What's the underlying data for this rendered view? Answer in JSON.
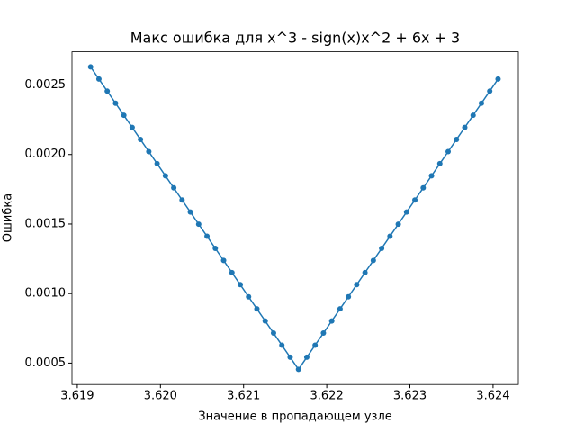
{
  "chart_data": {
    "type": "line",
    "title": "Макс ошибка для x^3 - sign(x)x^2 + 6x + 3",
    "x_label": "Значение в пропадающем узле",
    "y_label": "Ошибка",
    "color": "#1f77b4",
    "x": [
      3.61916,
      3.61926,
      3.61936,
      3.61946,
      3.61956,
      3.61966,
      3.61976,
      3.61986,
      3.61996,
      3.62006,
      3.62016,
      3.62026,
      3.62036,
      3.62046,
      3.62056,
      3.62066,
      3.62076,
      3.62086,
      3.62096,
      3.62106,
      3.62116,
      3.62126,
      3.62136,
      3.62146,
      3.62156,
      3.62166,
      3.62176,
      3.62186,
      3.62196,
      3.62206,
      3.62216,
      3.62226,
      3.62236,
      3.62246,
      3.62256,
      3.62266,
      3.62276,
      3.62286,
      3.62296,
      3.62306,
      3.62316,
      3.62326,
      3.62336,
      3.62346,
      3.62356,
      3.62366,
      3.62376,
      3.62386,
      3.62396,
      3.62406
    ],
    "values": [
      0.00263,
      0.002543,
      0.002456,
      0.002369,
      0.002282,
      0.002195,
      0.002108,
      0.002021,
      0.001934,
      0.001847,
      0.00176,
      0.001673,
      0.001586,
      0.001499,
      0.001412,
      0.001325,
      0.001238,
      0.001151,
      0.001064,
      0.000977,
      0.00089,
      0.000803,
      0.000716,
      0.000629,
      0.000542,
      0.000455,
      0.000542,
      0.000629,
      0.000716,
      0.000803,
      0.00089,
      0.000977,
      0.001064,
      0.001151,
      0.001238,
      0.001325,
      0.001412,
      0.001499,
      0.001586,
      0.001673,
      0.00176,
      0.001847,
      0.001934,
      0.002021,
      0.002108,
      0.002195,
      0.002282,
      0.002369,
      0.002456,
      0.002543
    ],
    "xlim": [
      3.618936,
      3.624304
    ],
    "ylim": [
      0.000346,
      0.002739
    ],
    "xticks": [
      3.619,
      {
        "value": 3.62,
        "label": "3.620"
      },
      3.621,
      3.622,
      3.623,
      3.624
    ],
    "yticks": [
      0.0005,
      {
        "value": 0.001,
        "label": "0.0010"
      },
      0.0015,
      {
        "value": 0.002,
        "label": "0.0020"
      },
      0.0025
    ],
    "grid": false
  }
}
